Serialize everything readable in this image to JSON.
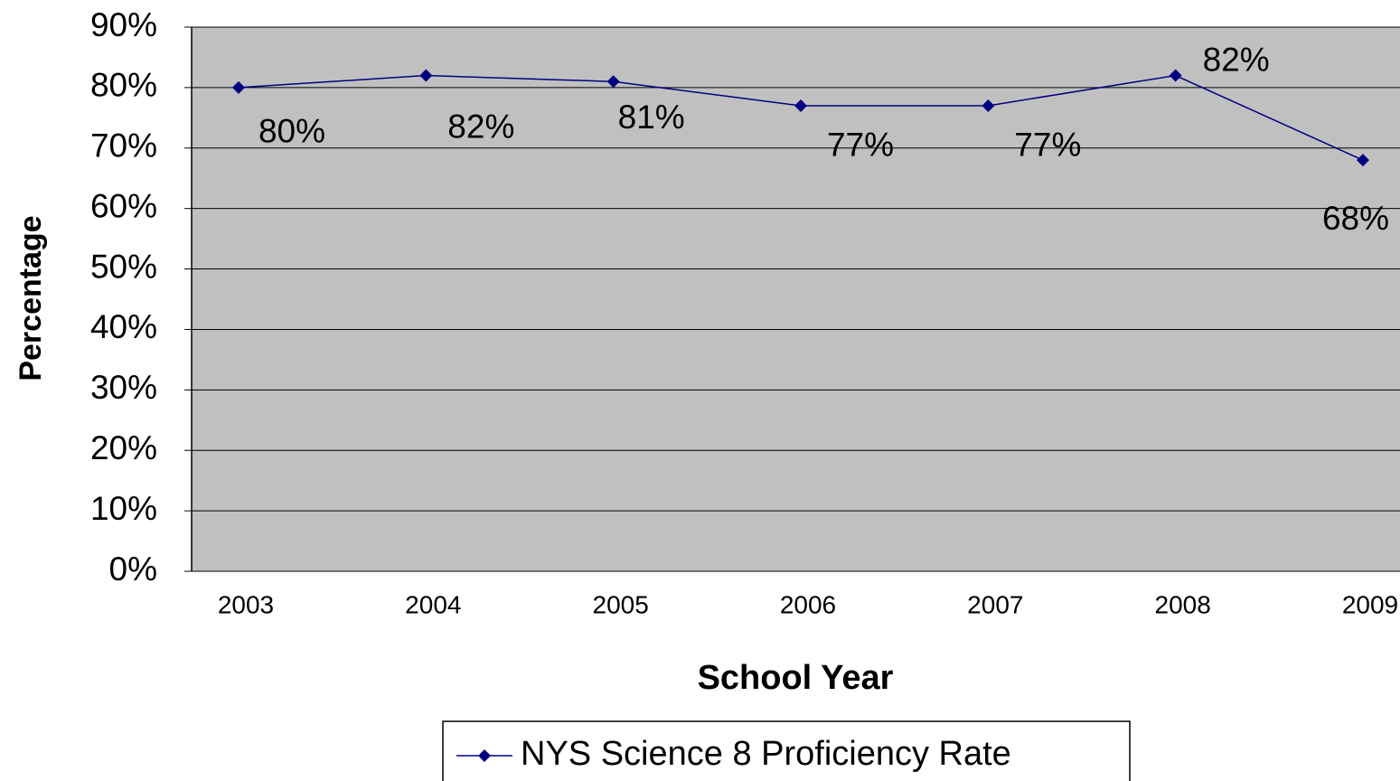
{
  "chart_data": {
    "type": "line",
    "x_label": "School Year",
    "y_label": "Percentage",
    "categories": [
      "2003",
      "2004",
      "2005",
      "2006",
      "2007",
      "2008",
      "2009"
    ],
    "series": [
      {
        "name": "NYS Science 8 Proficiency Rate",
        "color": "#000080",
        "values": [
          80,
          82,
          81,
          77,
          77,
          82,
          68
        ],
        "value_labels": [
          "80%",
          "82%",
          "81%",
          "77%",
          "77%",
          "82%",
          "68%"
        ]
      }
    ],
    "ylim": [
      0,
      90
    ],
    "yticks": [
      {
        "value": 0,
        "label": "0%"
      },
      {
        "value": 10,
        "label": "10%"
      },
      {
        "value": 20,
        "label": "20%"
      },
      {
        "value": 30,
        "label": "30%"
      },
      {
        "value": 40,
        "label": "40%"
      },
      {
        "value": 50,
        "label": "50%"
      },
      {
        "value": 60,
        "label": "60%"
      },
      {
        "value": 70,
        "label": "70%"
      },
      {
        "value": 80,
        "label": "80%"
      },
      {
        "value": 90,
        "label": "90%"
      }
    ],
    "grid": true,
    "plot_background": "#c0c0c0",
    "legend": "bottom"
  }
}
